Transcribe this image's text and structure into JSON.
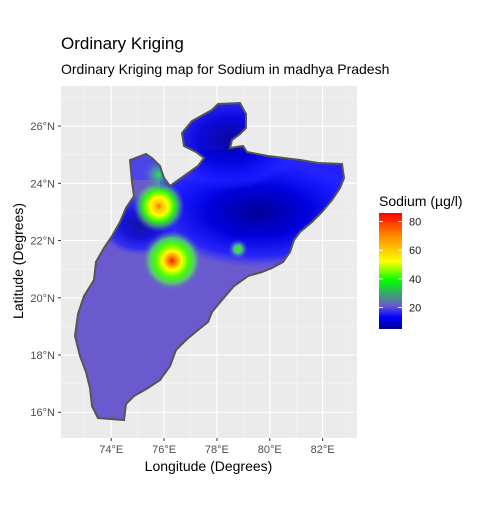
{
  "title": "Ordinary Kriging",
  "subtitle": "Ordinary Kriging map for Sodium in madhya Pradesh",
  "chart_data": {
    "type": "heatmap",
    "title": "Ordinary Kriging",
    "subtitle": "Ordinary Kriging map for Sodium in madhya Pradesh",
    "xlabel": "Longitude (Degrees)",
    "ylabel": "Latitude (Degrees)",
    "x_ticks": [
      {
        "value": 74,
        "label": "74°E"
      },
      {
        "value": 76,
        "label": "76°E"
      },
      {
        "value": 78,
        "label": "78°E"
      },
      {
        "value": 80,
        "label": "80°E"
      },
      {
        "value": 82,
        "label": "82°E"
      }
    ],
    "y_ticks": [
      {
        "value": 16,
        "label": "16°N"
      },
      {
        "value": 18,
        "label": "18°N"
      },
      {
        "value": 20,
        "label": "20°N"
      },
      {
        "value": 22,
        "label": "22°N"
      },
      {
        "value": 24,
        "label": "24°N"
      },
      {
        "value": 26,
        "label": "26°N"
      }
    ],
    "xlim": [
      72.1,
      83.3
    ],
    "ylim": [
      15.1,
      27.4
    ],
    "grid": true,
    "legend": {
      "title": "Sodium (µg/l)",
      "placement": "right",
      "range": [
        5,
        86
      ],
      "ticks": [
        20,
        40,
        60,
        80
      ],
      "colors": [
        "#00008b",
        "#0000ff",
        "#6a5acd",
        "#00ff00",
        "#ffff00",
        "#ff8c00",
        "#ff0000"
      ]
    },
    "hotspots": [
      {
        "lon": 76.3,
        "lat": 21.3,
        "value": 84
      },
      {
        "lon": 75.8,
        "lat": 23.2,
        "value": 62
      },
      {
        "lon": 78.8,
        "lat": 21.7,
        "value": 36
      },
      {
        "lon": 75.8,
        "lat": 24.3,
        "value": 30
      }
    ],
    "background_value": 20,
    "low_region": {
      "lon_range": [
        77.9,
        82.2
      ],
      "lat_range": [
        21.2,
        24.2
      ],
      "value": 8
    }
  }
}
